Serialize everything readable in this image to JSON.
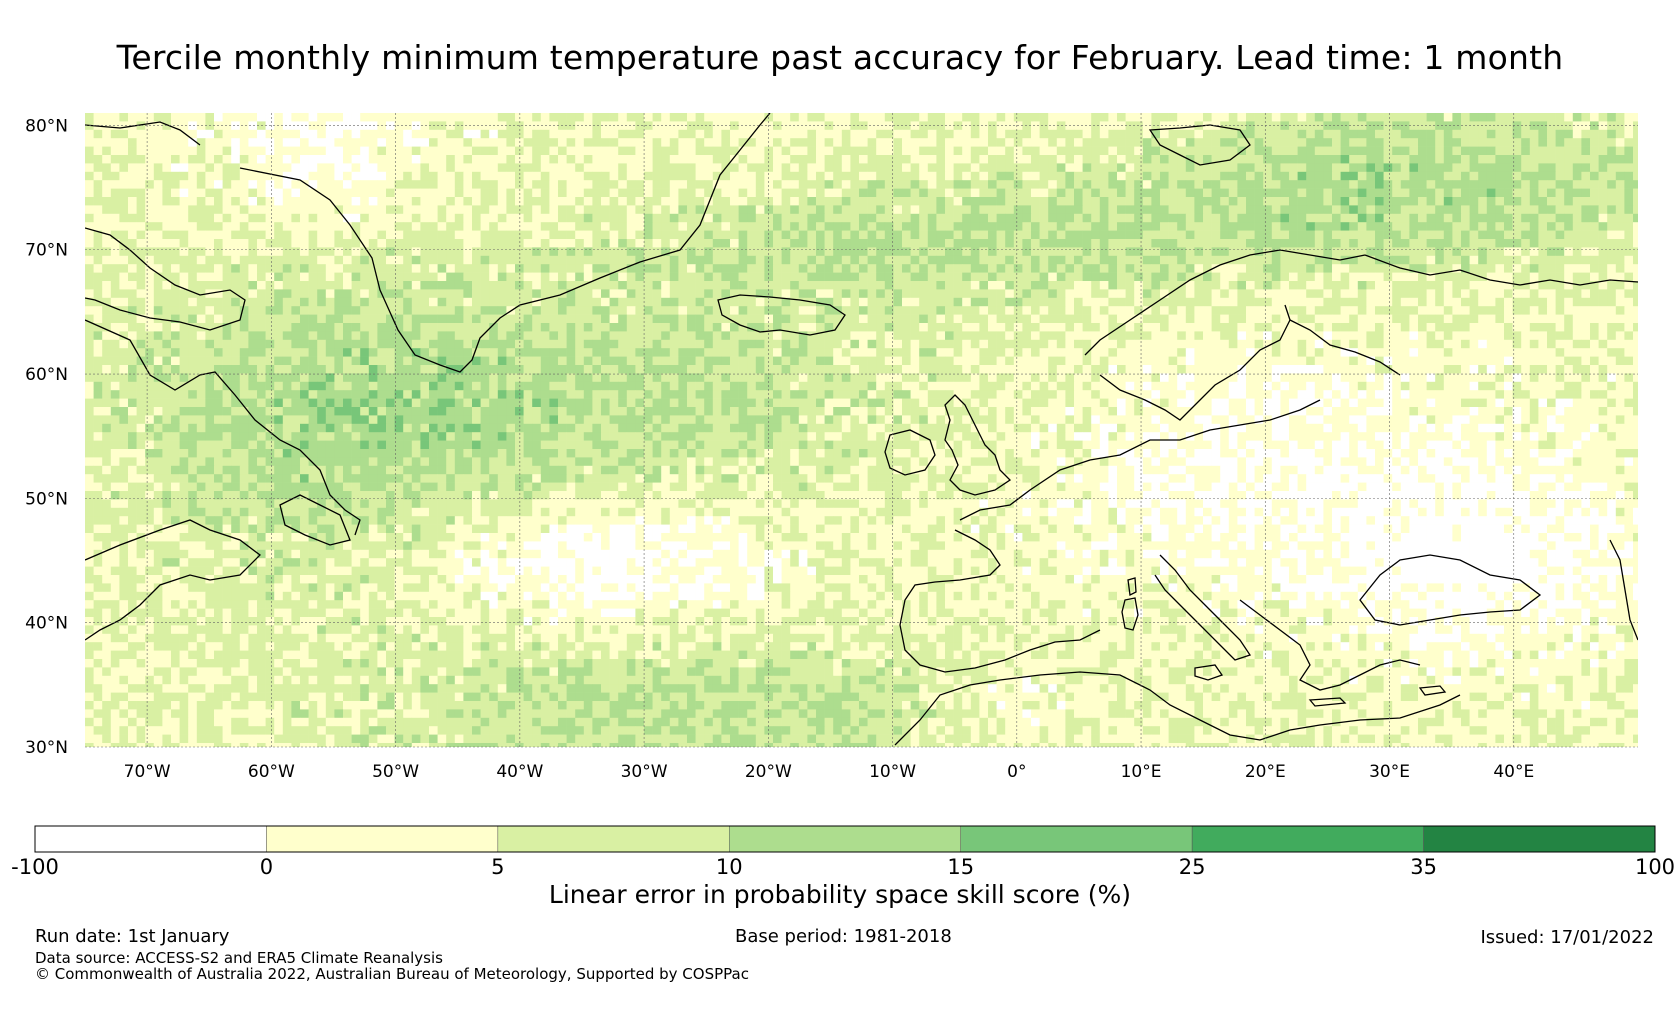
{
  "title": "Tercile monthly minimum temperature past accuracy for February. Lead time: 1 month",
  "map": {
    "lat_labels": [
      "80°N",
      "70°N",
      "60°N",
      "50°N",
      "40°N",
      "30°N"
    ],
    "lat_values": [
      80,
      70,
      60,
      50,
      40,
      30
    ],
    "lon_labels": [
      "70°W",
      "60°W",
      "50°W",
      "40°W",
      "30°W",
      "20°W",
      "10°W",
      "0°",
      "10°E",
      "20°E",
      "30°E",
      "40°E"
    ],
    "lon_values": [
      -70,
      -60,
      -50,
      -40,
      -30,
      -20,
      -10,
      0,
      10,
      20,
      30,
      40
    ],
    "lon_range": [
      -75,
      50
    ],
    "lat_range": [
      30,
      81
    ]
  },
  "colorbar": {
    "title": "Linear error in probability space skill score (%)",
    "ticks": [
      "-100",
      "0",
      "5",
      "10",
      "15",
      "25",
      "35",
      "100"
    ],
    "colors": [
      "#ffffff",
      "#ffffcc",
      "#d9f0a3",
      "#addd8e",
      "#78c679",
      "#41ab5d",
      "#238443"
    ]
  },
  "footer": {
    "run_date": "Run date: 1st January",
    "base_period": "Base period: 1981-2018",
    "issued": "Issued: 17/01/2022",
    "data_source": "Data source: ACCESS-S2 and ERA5 Climate Reanalysis",
    "copyright": "© Commonwealth of Australia 2022, Australian Bureau of Meteorology, Supported by COSPPac"
  }
}
